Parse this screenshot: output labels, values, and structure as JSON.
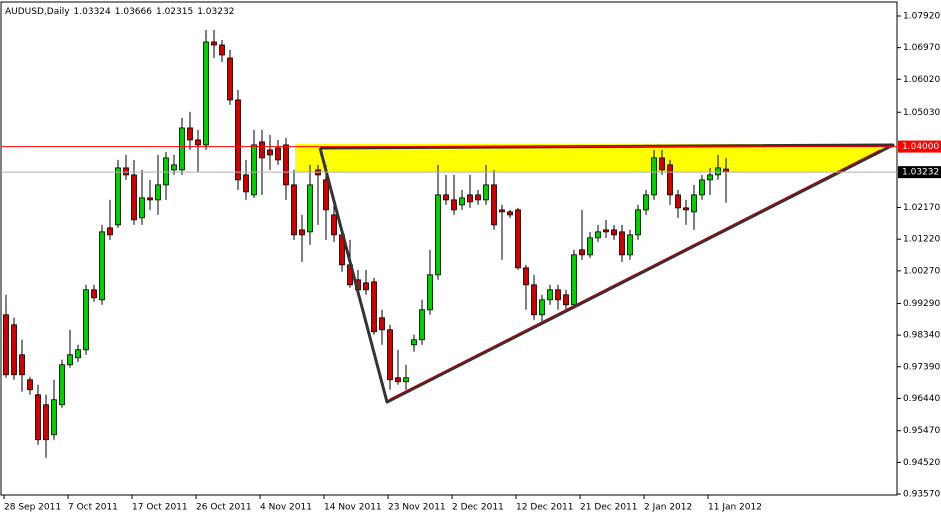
{
  "chart_data": {
    "type": "candlestick",
    "title": "AUDUSD,Daily",
    "categories": [
      "28 Sep 2011",
      null,
      null,
      null,
      null,
      null,
      null,
      null,
      "7 Oct 2011",
      null,
      null,
      null,
      null,
      null,
      null,
      null,
      "17 Oct 2011",
      null,
      null,
      null,
      null,
      null,
      null,
      null,
      "26 Oct 2011",
      null,
      null,
      null,
      null,
      null,
      null,
      null,
      "4 Nov 2011",
      null,
      null,
      null,
      null,
      null,
      null,
      null,
      "14 Nov 2011",
      null,
      null,
      null,
      null,
      null,
      null,
      null,
      "23 Nov 2011",
      null,
      null,
      null,
      null,
      null,
      null,
      null,
      "2 Dec 2011",
      null,
      null,
      null,
      null,
      null,
      null,
      null,
      "12 Dec 2011",
      null,
      null,
      null,
      null,
      null,
      null,
      null,
      "21 Dec 2011",
      null,
      null,
      null,
      null,
      null,
      null,
      null,
      "2 Jan 2012",
      null,
      null,
      null,
      null,
      null,
      null,
      null,
      "11 Jan 2012",
      null,
      null
    ],
    "open": [
      0.9895,
      0.9865,
      0.9775,
      0.97,
      0.9655,
      0.9625,
      0.9535,
      0.9625,
      0.9745,
      0.9766,
      0.979,
      0.997,
      0.994,
      1.0156,
      1.0165,
      1.0336,
      1.0315,
      1.0186,
      1.0246,
      1.024,
      1.0285,
      1.033,
      1.033,
      1.0456,
      1.042,
      1.0405,
      1.0714,
      1.0705,
      1.0666,
      1.054,
      1.0315,
      1.0255,
      1.0414,
      1.039,
      1.0396,
      1.0405,
      1.0285,
      1.015,
      1.0144,
      1.033,
      1.03,
      1.0195,
      1.0135,
      1.0045,
      1.0,
      0.9991,
      0.9994,
      0.9886,
      0.985,
      0.9706,
      0.9694,
      0.9805,
      0.982,
      0.991,
      1.0015,
      1.0255,
      1.024,
      1.0225,
      1.0255,
      1.0255,
      1.024,
      1.0285,
      1.021,
      1.0204,
      1.021,
      1.0036,
      0.9985,
      0.9895,
      0.994,
      0.997,
      0.9955,
      0.9925,
      1.009,
      1.0075,
      1.0126,
      1.015,
      1.015,
      1.0144,
      1.0075,
      1.0135,
      1.021,
      1.0255,
      1.0366,
      1.0345,
      1.0255,
      1.0216,
      1.0204,
      1.0255,
      1.03,
      1.0315,
      1.03324
    ],
    "high": [
      0.9955,
      0.9886,
      0.982,
      0.9709,
      0.9685,
      0.9655,
      0.97,
      0.976,
      0.985,
      0.9805,
      0.9985,
      0.9985,
      1.0165,
      1.024,
      1.036,
      1.0375,
      1.036,
      1.033,
      1.03,
      1.0375,
      1.0384,
      1.0375,
      1.0486,
      1.0504,
      1.045,
      1.075,
      1.075,
      1.072,
      1.069,
      1.057,
      1.036,
      1.045,
      1.045,
      1.0435,
      1.042,
      1.0426,
      1.033,
      1.0195,
      1.0345,
      1.0345,
      1.0345,
      1.024,
      1.0156,
      1.012,
      1.003,
      1.003,
      1.0006,
      0.991,
      0.9865,
      0.979,
      0.9745,
      0.9835,
      0.994,
      1.009,
      1.0345,
      1.0315,
      1.0315,
      1.027,
      1.0315,
      1.027,
      1.0345,
      1.033,
      1.0225,
      1.021,
      1.0216,
      1.0045,
      1.0015,
      0.9955,
      0.9985,
      0.9985,
      0.997,
      1.009,
      1.021,
      1.0144,
      1.0165,
      1.018,
      1.0165,
      1.0165,
      1.015,
      1.0225,
      1.027,
      1.039,
      1.039,
      1.036,
      1.027,
      1.024,
      1.0285,
      1.0315,
      1.0336,
      1.0375,
      1.03666
    ],
    "low": [
      0.9706,
      0.97,
      0.9664,
      0.9655,
      0.9505,
      0.9466,
      0.952,
      0.9616,
      0.9736,
      0.9754,
      0.9775,
      0.9934,
      0.9925,
      1.012,
      1.0156,
      1.03,
      1.0165,
      1.0165,
      1.021,
      1.0195,
      1.024,
      1.0315,
      1.0315,
      1.039,
      1.0324,
      1.039,
      1.0666,
      1.0654,
      1.0525,
      1.027,
      1.024,
      1.0246,
      1.0255,
      1.033,
      1.0345,
      1.024,
      1.012,
      1.0054,
      1.0105,
      1.0165,
      1.012,
      1.0114,
      1.0024,
      0.9976,
      0.9955,
      0.9955,
      0.9835,
      0.9805,
      0.967,
      0.9685,
      0.967,
      0.9784,
      0.9805,
      0.9895,
      1.0,
      1.0225,
      1.0195,
      1.021,
      1.0216,
      1.0225,
      1.0225,
      1.015,
      1.006,
      1.0186,
      1.003,
      0.991,
      0.988,
      0.9865,
      0.9925,
      0.991,
      0.9904,
      0.9916,
      1.006,
      1.0066,
      1.0114,
      1.0126,
      1.012,
      1.0054,
      1.006,
      1.012,
      1.0195,
      1.024,
      1.0315,
      1.0225,
      1.0186,
      1.0165,
      1.015,
      1.024,
      1.0255,
      1.03,
      1.02315
    ],
    "close": [
      0.9715,
      0.9715,
      0.9715,
      0.967,
      0.952,
      0.952,
      0.964,
      0.9745,
      0.9775,
      0.979,
      0.997,
      0.9946,
      1.0144,
      1.0135,
      1.0336,
      1.0315,
      1.018,
      1.0246,
      1.024,
      1.0285,
      1.0366,
      1.0345,
      1.0456,
      1.042,
      1.0405,
      1.0714,
      1.0705,
      1.0675,
      1.054,
      1.03,
      1.0264,
      1.0405,
      1.0366,
      1.0375,
      1.036,
      1.0285,
      1.0135,
      1.0135,
      1.0285,
      1.0315,
      1.021,
      1.0135,
      1.0045,
      0.9985,
      0.997,
      0.997,
      0.9844,
      0.985,
      0.97,
      0.9694,
      0.9706,
      0.982,
      0.991,
      1.0015,
      1.0255,
      1.024,
      1.021,
      1.0246,
      1.0234,
      1.024,
      1.0285,
      1.0165,
      1.0204,
      1.0195,
      1.0036,
      0.9985,
      0.9895,
      0.994,
      0.997,
      0.994,
      0.9925,
      1.0075,
      1.0075,
      1.0126,
      1.0144,
      1.0144,
      1.0135,
      1.0075,
      1.0135,
      1.021,
      1.0255,
      1.0366,
      1.033,
      1.0255,
      1.0216,
      1.021,
      1.0255,
      1.03,
      1.0315,
      1.0336,
      1.03232
    ],
    "up_color": "#00d000",
    "down_color": "#d00000",
    "ylim": [
      0.9354,
      1.0834
    ],
    "yticks": [
      {
        "value": 1.0792,
        "label": "1.07920"
      },
      {
        "value": 1.0697,
        "label": "1.06970"
      },
      {
        "value": 1.0602,
        "label": "1.06020"
      },
      {
        "value": 1.0503,
        "label": "1.05030"
      },
      {
        "value": 1.0217,
        "label": "1.02170"
      },
      {
        "value": 1.0122,
        "label": "1.01220"
      },
      {
        "value": 1.0027,
        "label": "1.00270"
      },
      {
        "value": 0.9929,
        "label": "0.99290"
      },
      {
        "value": 0.9834,
        "label": "0.98340"
      },
      {
        "value": 0.9739,
        "label": "0.97390"
      },
      {
        "value": 0.9644,
        "label": "0.96440"
      },
      {
        "value": 0.9547,
        "label": "0.95470"
      },
      {
        "value": 0.9452,
        "label": "0.94520"
      },
      {
        "value": 0.9357,
        "label": "0.93570"
      }
    ],
    "hline": {
      "value": 1.04,
      "label": "1.04000",
      "color": "#ff0000"
    },
    "grid": false
  }
}
